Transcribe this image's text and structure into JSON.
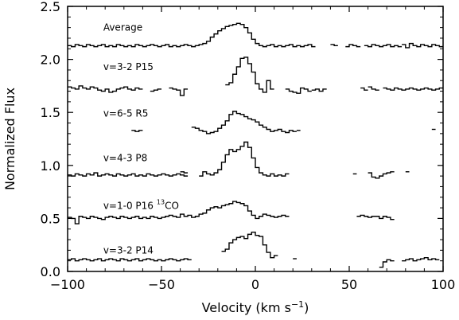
{
  "chart_data": {
    "type": "line",
    "title": "",
    "xlabel": "Velocity (km s",
    "xlabel_sup": "−1",
    "xlabel_end": ")",
    "ylabel": "Normalized Flux",
    "xlim": [
      -100,
      100
    ],
    "ylim": [
      0,
      2.5
    ],
    "x_ticks": [
      -100,
      -50,
      0,
      50,
      100
    ],
    "x_tick_labels": [
      "−100",
      "−50",
      "0",
      "50",
      "100"
    ],
    "y_ticks": [
      0,
      0.5,
      1,
      1.5,
      2,
      2.5
    ],
    "y_tick_labels": [
      "0.0",
      "0.5",
      "1.0",
      "1.5",
      "2.0",
      "2.5"
    ],
    "grid": false,
    "legend": "none",
    "step": 2,
    "series": [
      {
        "name": "Average",
        "label_x": -81,
        "label_y": 2.27,
        "segments": [
          {
            "x0": -99,
            "values": [
              2.13,
              2.12,
              2.14,
              2.13,
              2.12,
              2.14,
              2.13,
              2.12,
              2.13,
              2.14,
              2.12,
              2.13,
              2.12,
              2.14,
              2.13,
              2.12,
              2.13,
              2.12,
              2.14,
              2.13,
              2.12,
              2.13,
              2.14,
              2.13,
              2.12,
              2.13,
              2.14,
              2.12,
              2.13,
              2.12,
              2.13,
              2.14,
              2.13,
              2.12,
              2.13,
              2.14,
              2.15,
              2.17,
              2.21,
              2.24,
              2.27,
              2.29,
              2.31,
              2.32,
              2.33,
              2.34,
              2.33,
              2.3,
              2.25,
              2.19,
              2.15,
              2.13,
              2.12,
              2.13,
              2.14,
              2.12,
              2.13,
              2.12,
              2.13,
              2.14,
              2.12,
              2.13,
              2.12,
              2.13,
              2.14,
              2.12
            ]
          },
          {
            "x0": 41,
            "values": [
              2.14,
              2.13
            ]
          },
          {
            "x0": 49,
            "values": [
              2.12,
              2.14,
              2.13,
              2.12
            ]
          },
          {
            "x0": 59,
            "values": [
              2.13,
              2.12,
              2.14,
              2.13,
              2.12,
              2.13,
              2.14,
              2.12,
              2.13,
              2.12
            ]
          },
          {
            "x0": 79,
            "values": [
              2.14,
              2.11,
              2.15,
              2.13,
              2.12,
              2.14,
              2.13,
              2.12,
              2.14,
              2.13,
              2.12
            ]
          }
        ]
      },
      {
        "name": "v=3-2 P15",
        "label_x": -81,
        "label_y": 1.9,
        "segments": [
          {
            "x0": -99,
            "values": [
              1.74,
              1.73,
              1.72,
              1.75,
              1.73,
              1.72,
              1.74,
              1.73,
              1.71,
              1.7,
              1.72,
              1.69,
              1.7,
              1.72,
              1.73,
              1.74,
              1.72,
              1.71,
              1.73,
              1.72
            ]
          },
          {
            "x0": -55,
            "values": [
              1.7,
              1.71,
              1.72
            ]
          },
          {
            "x0": -45,
            "values": [
              1.73,
              1.72,
              1.71,
              1.66,
              1.72
            ]
          },
          {
            "x0": -15,
            "values": [
              1.76,
              1.78,
              1.86,
              1.93,
              2.01,
              2.02,
              1.96,
              1.88,
              1.77,
              1.72,
              1.69,
              1.8,
              1.72
            ]
          },
          {
            "x0": 17,
            "values": [
              1.72,
              1.7,
              1.69,
              1.68,
              1.73,
              1.72,
              1.7
            ]
          },
          {
            "x0": 31,
            "values": [
              1.71,
              1.72,
              1.7,
              1.72
            ]
          },
          {
            "x0": 57,
            "values": [
              1.73,
              1.71
            ]
          },
          {
            "x0": 61,
            "values": [
              1.74,
              1.72,
              1.71
            ]
          },
          {
            "x0": 69,
            "values": [
              1.73,
              1.72,
              1.71,
              1.73,
              1.72,
              1.71,
              1.72,
              1.73,
              1.72,
              1.71,
              1.72,
              1.73,
              1.72,
              1.71,
              1.72,
              1.73
            ]
          }
        ]
      },
      {
        "name": "v=6-5 R5",
        "label_x": -81,
        "label_y": 1.46,
        "segments": [
          {
            "x0": -65,
            "values": [
              1.33,
              1.32,
              1.33
            ]
          },
          {
            "x0": -33,
            "values": [
              1.36,
              1.35,
              1.33,
              1.32,
              1.3,
              1.31,
              1.32,
              1.35,
              1.38,
              1.42,
              1.48,
              1.51,
              1.49,
              1.48,
              1.46,
              1.44,
              1.43,
              1.41,
              1.38,
              1.36,
              1.34,
              1.32,
              1.33,
              1.34,
              1.32,
              1.31,
              1.33,
              1.32
            ]
          },
          {
            "x0": 23,
            "values": [
              1.33
            ]
          },
          {
            "x0": 95,
            "values": [
              1.34
            ]
          }
        ]
      },
      {
        "name": "v=4-3 P8",
        "label_x": -81,
        "label_y": 1.04,
        "segments": [
          {
            "x0": -99,
            "values": [
              0.91,
              0.9,
              0.92,
              0.91,
              0.9,
              0.92,
              0.91,
              0.93,
              0.9,
              0.91,
              0.92,
              0.91,
              0.9,
              0.92,
              0.91,
              0.9,
              0.91,
              0.92,
              0.9,
              0.91,
              0.9,
              0.92,
              0.91,
              0.9,
              0.91,
              0.92,
              0.91,
              0.9,
              0.91,
              0.92,
              0.91,
              0.9
            ]
          },
          {
            "x0": -39,
            "values": [
              0.94,
              0.93
            ]
          },
          {
            "x0": -29,
            "values": [
              0.9,
              0.94,
              0.92,
              0.91,
              0.93,
              0.96,
              1.03,
              1.1,
              1.15,
              1.13,
              1.15,
              1.18,
              1.22,
              1.17,
              1.07,
              0.98,
              0.93,
              0.91,
              0.9,
              0.92,
              0.9,
              0.91,
              0.9,
              0.92
            ]
          },
          {
            "x0": 53,
            "values": [
              0.92
            ]
          },
          {
            "x0": 61,
            "values": [
              0.93,
              0.89,
              0.88,
              0.9,
              0.92,
              0.93,
              0.94
            ]
          },
          {
            "x0": 81,
            "values": [
              0.94
            ]
          }
        ]
      },
      {
        "name": "v=1-0 P16",
        "name_sup": "13",
        "name_tail": "CO",
        "label_x": -81,
        "label_y": 0.59,
        "segments": [
          {
            "x0": -99,
            "values": [
              0.51,
              0.5,
              0.45,
              0.52,
              0.51,
              0.5,
              0.52,
              0.51,
              0.5,
              0.49,
              0.51,
              0.52,
              0.51,
              0.5,
              0.52,
              0.51,
              0.5,
              0.51,
              0.52,
              0.5,
              0.51,
              0.5,
              0.52,
              0.51,
              0.5,
              0.51,
              0.52,
              0.53,
              0.52,
              0.51,
              0.54,
              0.52,
              0.53,
              0.51,
              0.52,
              0.54,
              0.55,
              0.58,
              0.6,
              0.61,
              0.6,
              0.62,
              0.63,
              0.64,
              0.66,
              0.65,
              0.64,
              0.62,
              0.57,
              0.53,
              0.5,
              0.52,
              0.54,
              0.53,
              0.52,
              0.51,
              0.52,
              0.53,
              0.52
            ]
          },
          {
            "x0": 55,
            "values": [
              0.52,
              0.53,
              0.52,
              0.51,
              0.52,
              0.52,
              0.5,
              0.52,
              0.51,
              0.49
            ]
          }
        ]
      },
      {
        "name": "v=3-2 P14",
        "label_x": -81,
        "label_y": 0.17,
        "segments": [
          {
            "x0": -99,
            "values": [
              0.11,
              0.12,
              0.1,
              0.11,
              0.12,
              0.11,
              0.1,
              0.11,
              0.12,
              0.1,
              0.11,
              0.12,
              0.11,
              0.1,
              0.12,
              0.11,
              0.1,
              0.11,
              0.12,
              0.1,
              0.11,
              0.12,
              0.11,
              0.1,
              0.11,
              0.1,
              0.11,
              0.12,
              0.11,
              0.1,
              0.11,
              0.12,
              0.11
            ]
          },
          {
            "x0": -17,
            "values": [
              0.19,
              0.21,
              0.27,
              0.3,
              0.32,
              0.33,
              0.31,
              0.35,
              0.37,
              0.34,
              0.33,
              0.25,
              0.18,
              0.13,
              0.15
            ]
          },
          {
            "x0": 21,
            "values": [
              0.12
            ]
          },
          {
            "x0": 67,
            "values": [
              0.04,
              0.09,
              0.11,
              0.1
            ]
          },
          {
            "x0": 79,
            "values": [
              0.1,
              0.11,
              0.12,
              0.1,
              0.11,
              0.12,
              0.13,
              0.11,
              0.12,
              0.11
            ]
          }
        ]
      }
    ]
  }
}
